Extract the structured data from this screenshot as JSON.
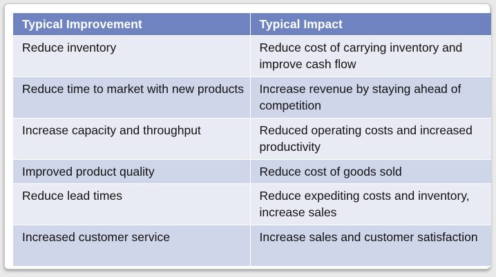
{
  "table": {
    "headers": [
      "Typical Improvement",
      "Typical Impact"
    ],
    "rows": [
      [
        "Reduce inventory",
        "Reduce cost of carrying inventory and improve cash flow"
      ],
      [
        "Reduce time to market with new products",
        "Increase revenue by staying ahead of competition"
      ],
      [
        "Increase capacity and throughput",
        "Reduced operating costs and increased productivity"
      ],
      [
        "Improved product quality",
        "Reduce cost of goods sold"
      ],
      [
        "Reduce lead times",
        "Reduce expediting costs and inventory, increase sales"
      ],
      [
        "Increased customer service",
        "Increase sales and customer satisfaction"
      ]
    ]
  },
  "colors": {
    "header_bg": "#6f83c0",
    "row_light": "#e8ebf4",
    "row_dark": "#d0d6ea"
  }
}
